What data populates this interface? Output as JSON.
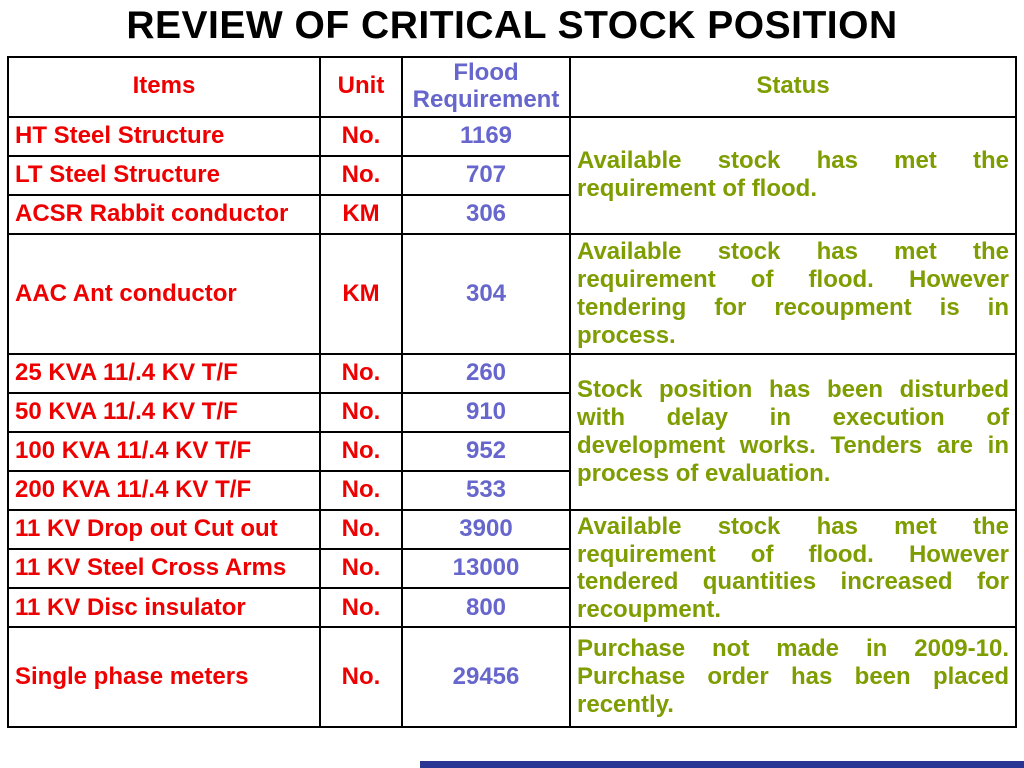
{
  "slide": {
    "title": "REVIEW OF CRITICAL STOCK POSITION"
  },
  "table": {
    "headers": {
      "items": "Items",
      "unit": "Unit",
      "flood": "Flood Requirement",
      "status": "Status"
    },
    "rows": [
      {
        "item": "HT Steel Structure",
        "unit": "No.",
        "flood": "1169"
      },
      {
        "item": "LT Steel Structure",
        "unit": "No.",
        "flood": "707"
      },
      {
        "item": "ACSR Rabbit conductor",
        "unit": "KM",
        "flood": "306"
      },
      {
        "item": "AAC Ant conductor",
        "unit": "KM",
        "flood": "304"
      },
      {
        "item": "25 KVA 11/.4 KV T/F",
        "unit": "No.",
        "flood": "260"
      },
      {
        "item": "50 KVA 11/.4 KV T/F",
        "unit": "No.",
        "flood": "910"
      },
      {
        "item": "100 KVA 11/.4 KV T/F",
        "unit": "No.",
        "flood": "952"
      },
      {
        "item": "200 KVA 11/.4 KV T/F",
        "unit": "No.",
        "flood": "533"
      },
      {
        "item": "11 KV Drop out Cut out",
        "unit": "No.",
        "flood": "3900"
      },
      {
        "item": "11 KV Steel Cross Arms",
        "unit": "No.",
        "flood": "13000"
      },
      {
        "item": "11 KV Disc insulator",
        "unit": "No.",
        "flood": "800"
      },
      {
        "item": "Single phase meters",
        "unit": "No.",
        "flood": "29456"
      }
    ],
    "status_cells": [
      {
        "rowspan": 3,
        "text": "Available stock has met the requirement of flood."
      },
      {
        "rowspan": 1,
        "text": "Available stock has met the requirement of flood. However tendering for recoupment is in process."
      },
      {
        "rowspan": 4,
        "text": "Stock position has been disturbed with delay in execution of development works. Tenders are in process of evaluation."
      },
      {
        "rowspan": 3,
        "text": "Available stock has met the requirement of flood. However tendered quantities increased for recoupment."
      },
      {
        "rowspan": 1,
        "text": "Purchase not made in 2009-10. Purchase order has been placed recently."
      }
    ]
  },
  "colors": {
    "title_text": "#000000",
    "item_text": "#ee0000",
    "flood_text": "#6666cc",
    "status_text": "#7d9d00",
    "border": "#000000",
    "footer_bar": "#283593",
    "background": "#ffffff"
  }
}
